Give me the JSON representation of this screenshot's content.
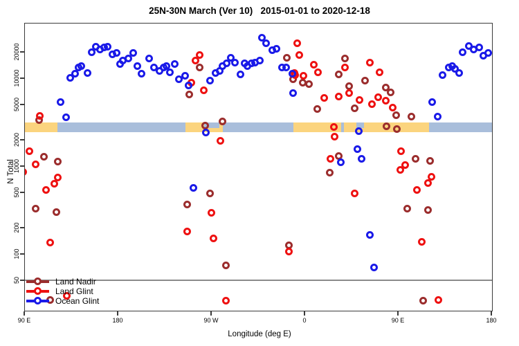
{
  "title": "25N-30N March (Ver 10)   2015-01-01 to 2020-12-18",
  "x_axis": {
    "label": "Longitude (deg E)",
    "range_plot_deg": [
      90,
      540
    ],
    "ticks": [
      {
        "lon": 90,
        "label": "90 E"
      },
      {
        "lon": 180,
        "label": "180"
      },
      {
        "lon": 270,
        "label": "90 W"
      },
      {
        "lon": 360,
        "label": "0"
      },
      {
        "lon": 450,
        "label": "90 E"
      },
      {
        "lon": 540,
        "label": "180"
      }
    ]
  },
  "y_axis": {
    "label": "N Total",
    "scale": "log10",
    "ticks": [
      50,
      100,
      200,
      500,
      1000,
      2000,
      5000,
      10000,
      20000
    ]
  },
  "reference_line": {
    "value": 50
  },
  "colors": {
    "land_nadir": "#9B2D2D",
    "land_glint": "#EE1111",
    "ocean_glint": "#1A1AE8",
    "map_land": "#FBD47E",
    "map_ocean": "#A9BEDB",
    "axis": "#3a3a3a",
    "ref_line": "#8a8a8a"
  },
  "legend": {
    "items": [
      {
        "label": "Land Nadir",
        "series": "land_nadir"
      },
      {
        "label": "Land Glint",
        "series": "land_glint"
      },
      {
        "label": "Ocean Glint",
        "series": "ocean_glint"
      }
    ]
  },
  "map_strip": {
    "value_band": [
      2750,
      3550
    ],
    "base_segments": [
      {
        "lon1": 90,
        "lon2": 122,
        "kind": "land"
      },
      {
        "lon1": 122,
        "lon2": 245,
        "kind": "ocean"
      },
      {
        "lon1": 245,
        "lon2": 281,
        "kind": "land"
      },
      {
        "lon1": 281,
        "lon2": 349,
        "kind": "ocean"
      },
      {
        "lon1": 349,
        "lon2": 480,
        "kind": "land"
      },
      {
        "lon1": 480,
        "lon2": 542,
        "kind": "ocean"
      }
    ],
    "overlay_segments": [
      {
        "lon1": 263,
        "lon2": 278,
        "kind": "ocean",
        "half": true
      },
      {
        "lon1": 395,
        "lon2": 398,
        "kind": "ocean",
        "half": false
      },
      {
        "lon1": 410,
        "lon2": 417,
        "kind": "ocean",
        "half": true
      }
    ]
  },
  "chart_data": {
    "type": "scatter",
    "xlabel": "Longitude (deg E)",
    "ylabel": "N Total",
    "x_axis_deg_east_unwrapped": [
      90,
      540
    ],
    "ylim": [
      20,
      43000
    ],
    "legend_position": "bottom-left",
    "series": [
      {
        "name": "Land Nadir",
        "color": "#9B2D2D",
        "points": [
          [
            104,
            3370
          ],
          [
            109,
            1270
          ],
          [
            122,
            1120
          ],
          [
            101,
            330
          ],
          [
            121,
            300
          ],
          [
            115,
            30
          ],
          [
            259,
            13200
          ],
          [
            249,
            6600
          ],
          [
            281,
            3250
          ],
          [
            264,
            2900
          ],
          [
            343,
            17300
          ],
          [
            349,
            9700
          ],
          [
            358,
            9000
          ],
          [
            364,
            8600
          ],
          [
            399,
            16700
          ],
          [
            393,
            11000
          ],
          [
            418,
            9350
          ],
          [
            403,
            8100
          ],
          [
            408,
            4550
          ],
          [
            372,
            4500
          ],
          [
            384,
            840
          ],
          [
            393,
            1300
          ],
          [
            439,
            2830
          ],
          [
            438,
            7900
          ],
          [
            443,
            6950
          ],
          [
            448,
            3820
          ],
          [
            463,
            3680
          ],
          [
            449,
            2620
          ],
          [
            467,
            1210
          ],
          [
            481,
            1140
          ],
          [
            269,
            490
          ],
          [
            247,
            365
          ],
          [
            284,
            74
          ],
          [
            345,
            126
          ],
          [
            459,
            330
          ],
          [
            479,
            315
          ],
          [
            474,
            29
          ]
        ]
      },
      {
        "name": "Land Glint",
        "color": "#EE1111",
        "points": [
          [
            105,
            3700
          ],
          [
            95,
            1490
          ],
          [
            101,
            1040
          ],
          [
            89,
            850
          ],
          [
            111,
            530
          ],
          [
            119,
            635
          ],
          [
            122,
            735
          ],
          [
            115,
            135
          ],
          [
            131,
            33
          ],
          [
            259,
            18500
          ],
          [
            255,
            15900
          ],
          [
            263,
            7350
          ],
          [
            251,
            9000
          ],
          [
            279,
            1925
          ],
          [
            353,
            25300
          ],
          [
            355,
            18500
          ],
          [
            369,
            14200
          ],
          [
            350,
            11600
          ],
          [
            351,
            10800
          ],
          [
            359,
            10600
          ],
          [
            373,
            11800
          ],
          [
            399,
            13400
          ],
          [
            393,
            6250
          ],
          [
            403,
            6750
          ],
          [
            413,
            5700
          ],
          [
            425,
            5100
          ],
          [
            431,
            6050
          ],
          [
            432,
            11800
          ],
          [
            423,
            15200
          ],
          [
            379,
            5950
          ],
          [
            388,
            2770
          ],
          [
            389,
            2180
          ],
          [
            385,
            1210
          ],
          [
            438,
            5600
          ],
          [
            445,
            4650
          ],
          [
            453,
            1480
          ],
          [
            457,
            1030
          ],
          [
            452,
            910
          ],
          [
            270,
            295
          ],
          [
            247,
            180
          ],
          [
            272,
            150
          ],
          [
            284,
            29
          ],
          [
            408,
            490
          ],
          [
            345,
            107
          ],
          [
            482,
            750
          ],
          [
            479,
            645
          ],
          [
            468,
            530
          ],
          [
            473,
            138
          ],
          [
            489,
            30
          ]
        ]
      },
      {
        "name": "Ocean Glint",
        "color": "#1A1AE8",
        "points": [
          [
            155,
            20000
          ],
          [
            159,
            23000
          ],
          [
            163,
            21500
          ],
          [
            167,
            22500
          ],
          [
            170,
            22800
          ],
          [
            175,
            18900
          ],
          [
            179,
            19300
          ],
          [
            182,
            14500
          ],
          [
            185,
            16000
          ],
          [
            190,
            16900
          ],
          [
            195,
            19300
          ],
          [
            199,
            13900
          ],
          [
            203,
            11200
          ],
          [
            142,
            13400
          ],
          [
            145,
            13900
          ],
          [
            134,
            10200
          ],
          [
            139,
            11200
          ],
          [
            151,
            11400
          ],
          [
            125,
            5350
          ],
          [
            130,
            3600
          ],
          [
            210,
            16900
          ],
          [
            215,
            13200
          ],
          [
            220,
            12200
          ],
          [
            224,
            13400
          ],
          [
            227,
            13900
          ],
          [
            230,
            11800
          ],
          [
            235,
            14500
          ],
          [
            239,
            9700
          ],
          [
            245,
            10600
          ],
          [
            248,
            8350
          ],
          [
            269,
            9350
          ],
          [
            274,
            11600
          ],
          [
            278,
            12200
          ],
          [
            281,
            13700
          ],
          [
            285,
            14700
          ],
          [
            289,
            17300
          ],
          [
            293,
            15200
          ],
          [
            298,
            11000
          ],
          [
            302,
            14700
          ],
          [
            305,
            13900
          ],
          [
            309,
            14700
          ],
          [
            312,
            15200
          ],
          [
            319,
            28800
          ],
          [
            323,
            25300
          ],
          [
            329,
            20800
          ],
          [
            333,
            21900
          ],
          [
            317,
            15900
          ],
          [
            338,
            13200
          ],
          [
            342,
            13400
          ],
          [
            348,
            11200
          ],
          [
            349,
            6850
          ],
          [
            265,
            2400
          ],
          [
            412,
            2500
          ],
          [
            411,
            1560
          ],
          [
            415,
            1210
          ],
          [
            395,
            1100
          ],
          [
            423,
            165
          ],
          [
            427,
            70
          ],
          [
            253,
            560
          ],
          [
            483,
            5350
          ],
          [
            488,
            3650
          ],
          [
            493,
            10800
          ],
          [
            499,
            13400
          ],
          [
            502,
            13700
          ],
          [
            505,
            12900
          ],
          [
            509,
            11400
          ],
          [
            512,
            19900
          ],
          [
            518,
            23200
          ],
          [
            523,
            21200
          ],
          [
            528,
            22700
          ],
          [
            532,
            18200
          ],
          [
            537,
            19300
          ]
        ]
      }
    ]
  }
}
